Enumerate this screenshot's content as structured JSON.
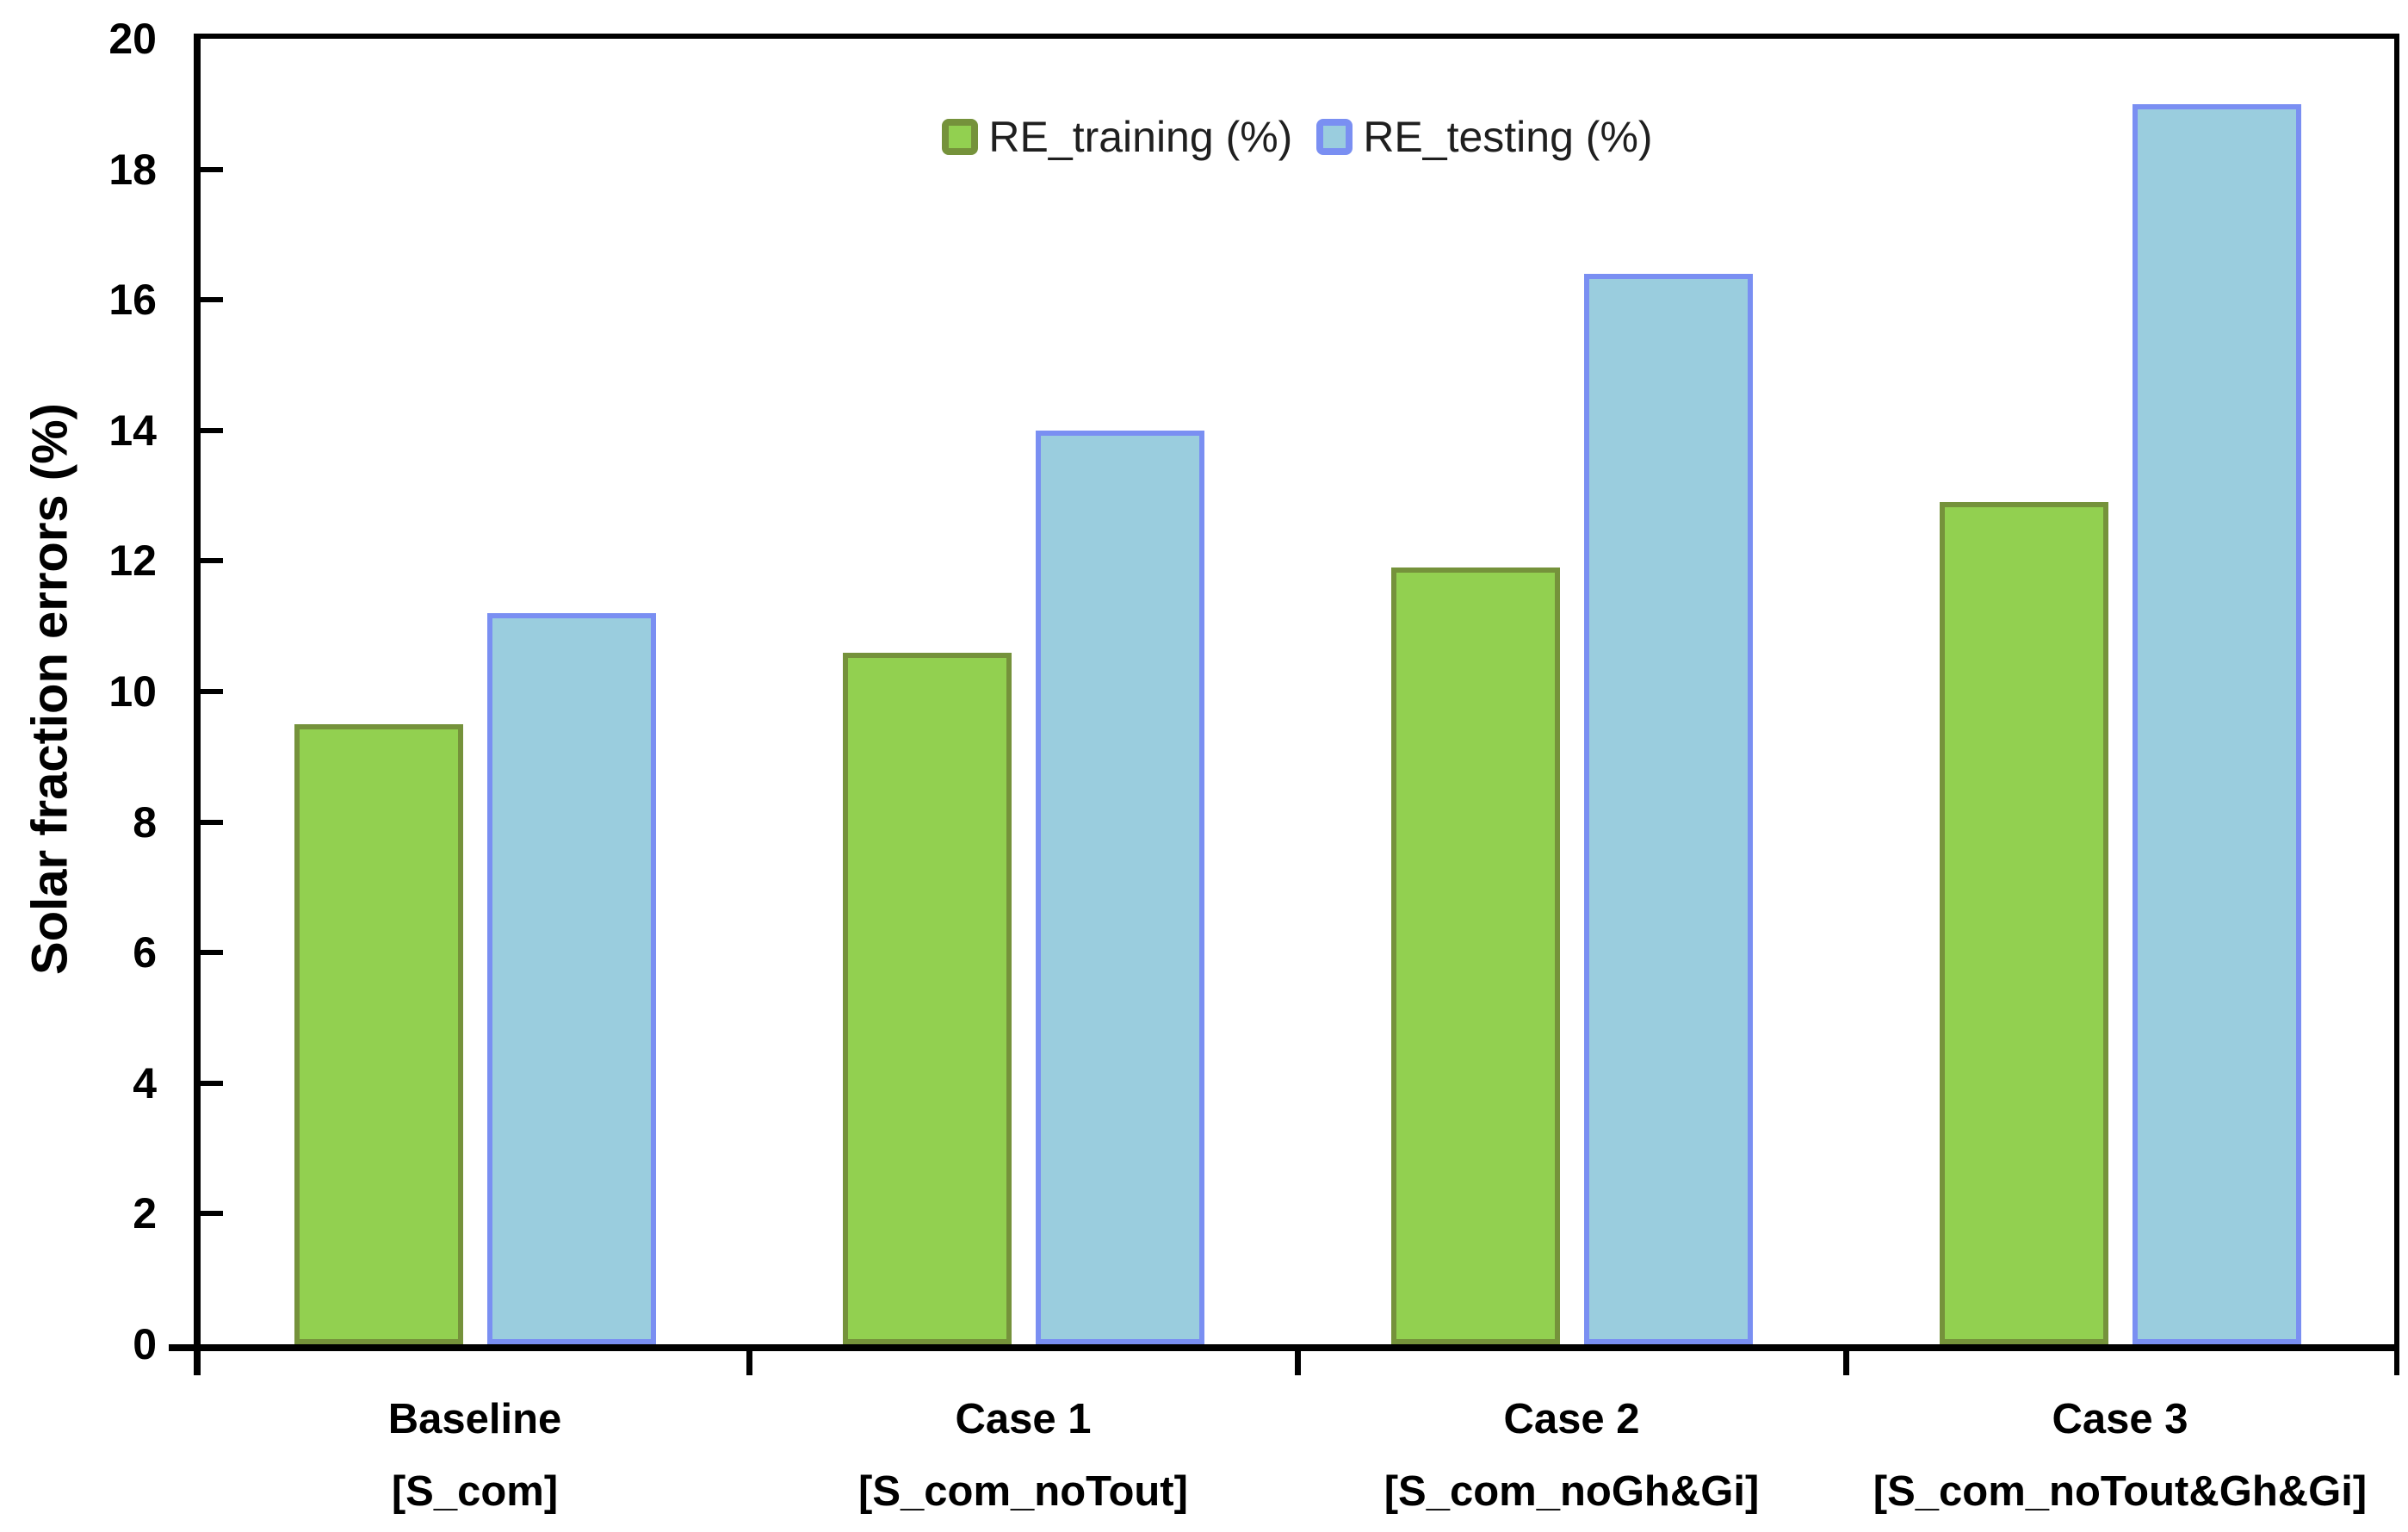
{
  "chart_data": {
    "type": "bar",
    "title": "",
    "xlabel": "",
    "ylabel": "Solar fraction errors (%)",
    "ylim": [
      0,
      20
    ],
    "y_tick_step": 2,
    "y_tick_labels": [
      "0",
      "2",
      "4",
      "6",
      "8",
      "10",
      "12",
      "14",
      "16",
      "18",
      "20"
    ],
    "grid": false,
    "legend_position": "top-center",
    "categories": [
      {
        "label": "Baseline",
        "sublabel": "[S_com]"
      },
      {
        "label": "Case 1",
        "sublabel": "[S_com_noTout]"
      },
      {
        "label": "Case 2",
        "sublabel": "[S_com_noGh&Gi]"
      },
      {
        "label": "Case 3",
        "sublabel": "[S_com_noTout&Gh&Gi]"
      }
    ],
    "series": [
      {
        "name": "RE_training (%)",
        "values": [
          9.5,
          10.6,
          11.9,
          12.9
        ],
        "fill_color": "#92D050",
        "border_color": "#75923B"
      },
      {
        "name": "RE_testing (%)",
        "values": [
          11.2,
          14.0,
          16.4,
          19.0
        ],
        "fill_color": "#9ACDDE",
        "border_color": "#7A8FF2"
      }
    ]
  },
  "colors": {
    "axis": "#000000",
    "text": "#000000",
    "legend_text": "#1f1f1f",
    "background": "#ffffff"
  }
}
